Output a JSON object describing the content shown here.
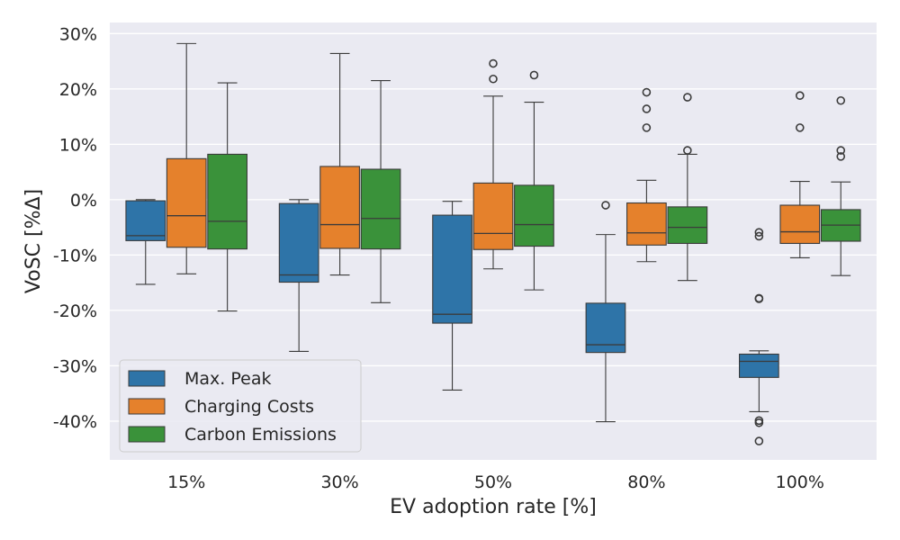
{
  "chart_data": {
    "type": "box",
    "xlabel": "EV adoption rate [%]",
    "ylabel": "VoSC [%Δ]",
    "categories": [
      "15%",
      "30%",
      "50%",
      "80%",
      "100%"
    ],
    "ylim": [
      -47,
      32
    ],
    "yticks": [
      30,
      20,
      10,
      0,
      -10,
      -20,
      -30,
      -40
    ],
    "ytick_labels": [
      "30%",
      "20%",
      "10%",
      "0%",
      "-10%",
      "-20%",
      "-30%",
      "-40%"
    ],
    "grid": true,
    "legend_position": "lower-left",
    "series": [
      {
        "name": "Max. Peak",
        "color": "#2e74a8",
        "boxes": [
          {
            "whislo": -15.3,
            "q1": -7.4,
            "med": -6.5,
            "q3": -0.2,
            "whishi": 0.0,
            "fliers": []
          },
          {
            "whislo": -27.4,
            "q1": -14.9,
            "med": -13.6,
            "q3": -0.7,
            "whishi": 0.0,
            "fliers": []
          },
          {
            "whislo": -34.4,
            "q1": -22.3,
            "med": -20.7,
            "q3": -2.8,
            "whishi": -0.3,
            "fliers": []
          },
          {
            "whislo": -40.1,
            "q1": -27.6,
            "med": -26.2,
            "q3": -18.7,
            "whishi": -6.3,
            "fliers": [
              -1.0
            ]
          },
          {
            "whislo": -38.3,
            "q1": -32.1,
            "med": -29.2,
            "q3": -27.9,
            "whishi": -27.3,
            "fliers": [
              -5.9,
              -6.6,
              -17.8,
              -17.9,
              -39.9,
              -40.3,
              -43.6
            ]
          }
        ]
      },
      {
        "name": "Charging Costs",
        "color": "#e5812c",
        "boxes": [
          {
            "whislo": -13.4,
            "q1": -8.6,
            "med": -2.9,
            "q3": 7.4,
            "whishi": 28.2,
            "fliers": []
          },
          {
            "whislo": -13.6,
            "q1": -8.8,
            "med": -4.5,
            "q3": 6.0,
            "whishi": 26.4,
            "fliers": []
          },
          {
            "whislo": -12.5,
            "q1": -9.0,
            "med": -6.1,
            "q3": 3.0,
            "whishi": 18.7,
            "fliers": [
              21.8,
              24.6
            ]
          },
          {
            "whislo": -11.2,
            "q1": -8.2,
            "med": -6.0,
            "q3": -0.6,
            "whishi": 3.5,
            "fliers": [
              13.0,
              16.4,
              19.4
            ]
          },
          {
            "whislo": -10.5,
            "q1": -7.9,
            "med": -5.8,
            "q3": -1.0,
            "whishi": 3.3,
            "fliers": [
              13.0,
              18.8
            ]
          }
        ]
      },
      {
        "name": "Carbon Emissions",
        "color": "#3a923a",
        "boxes": [
          {
            "whislo": -20.1,
            "q1": -8.9,
            "med": -3.9,
            "q3": 8.2,
            "whishi": 21.1,
            "fliers": []
          },
          {
            "whislo": -18.6,
            "q1": -8.9,
            "med": -3.4,
            "q3": 5.5,
            "whishi": 21.5,
            "fliers": []
          },
          {
            "whislo": -16.3,
            "q1": -8.4,
            "med": -4.5,
            "q3": 2.6,
            "whishi": 17.6,
            "fliers": [
              22.5
            ]
          },
          {
            "whislo": -14.6,
            "q1": -7.9,
            "med": -5.0,
            "q3": -1.3,
            "whishi": 8.2,
            "fliers": [
              8.9,
              18.5
            ]
          },
          {
            "whislo": -13.7,
            "q1": -7.5,
            "med": -4.6,
            "q3": -1.8,
            "whishi": 3.2,
            "fliers": [
              7.8,
              8.9,
              17.9
            ]
          }
        ]
      }
    ]
  }
}
